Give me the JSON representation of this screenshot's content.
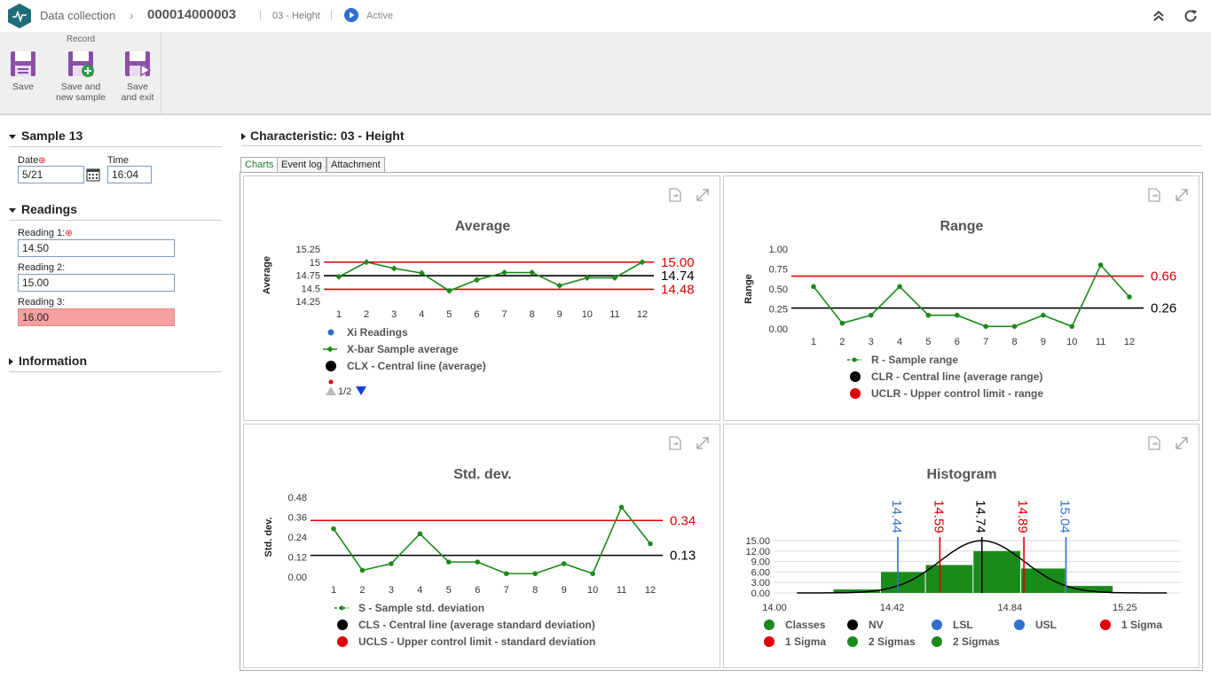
{
  "header": {
    "app": "Data collection",
    "record_id": "000014000003",
    "characteristic": "03 - Height",
    "status": "Active",
    "separator": "|"
  },
  "ribbon": {
    "group_title": "Record",
    "save": "Save",
    "save_new_line1": "Save and",
    "save_new_line2": "new sample",
    "save_exit_line1": "Save",
    "save_exit_line2": "and exit"
  },
  "sample": {
    "title": "Sample 13",
    "date_label": "Date",
    "date_value": "5/21",
    "time_label": "Time",
    "time_value": "16:04"
  },
  "readings": {
    "title": "Readings",
    "items": [
      {
        "label": "Reading 1:",
        "value": "14.50",
        "required": true
      },
      {
        "label": "Reading 2:",
        "value": "15.00",
        "required": false
      },
      {
        "label": "Reading 3:",
        "value": "16.00",
        "required": false
      }
    ]
  },
  "information": {
    "title": "Information"
  },
  "characteristic_panel": {
    "title": "Characteristic: 03 - Height",
    "tabs": [
      "Charts",
      "Event log",
      "Attachment"
    ]
  },
  "colors": {
    "green": "#1a8a1a",
    "red": "#e00000",
    "blue": "#2f6fcf",
    "black": "#000000"
  },
  "chart_data": [
    {
      "type": "line",
      "title": "Average",
      "ylabel": "Average",
      "x": [
        1,
        2,
        3,
        4,
        5,
        6,
        7,
        8,
        9,
        10,
        11,
        12
      ],
      "ylim": [
        14.25,
        15.25
      ],
      "yticks": [
        "15.25",
        "15",
        "14.75",
        "14.5",
        "14.25"
      ],
      "series": [
        {
          "name": "X-bar Sample average",
          "values": [
            14.72,
            15.0,
            14.88,
            14.79,
            14.45,
            14.66,
            14.8,
            14.8,
            14.55,
            14.7,
            14.7,
            15.0
          ]
        }
      ],
      "limits": [
        {
          "label": "15.00",
          "value": 15.0,
          "color": "#e00000"
        },
        {
          "label": "14.74",
          "value": 14.74,
          "color": "#000000"
        },
        {
          "label": "14.48",
          "value": 14.48,
          "color": "#e00000"
        }
      ],
      "legend": [
        "Xi Readings",
        "X-bar Sample average",
        "CLX - Central line (average)"
      ],
      "pager": "1/2"
    },
    {
      "type": "line",
      "title": "Range",
      "ylabel": "Range",
      "x": [
        1,
        2,
        3,
        4,
        5,
        6,
        7,
        8,
        9,
        10,
        11,
        12
      ],
      "ylim": [
        0,
        1
      ],
      "yticks": [
        "1.00",
        "0.75",
        "0.50",
        "0.25",
        "0.00"
      ],
      "series": [
        {
          "name": "R - Sample range",
          "values": [
            0.53,
            0.07,
            0.17,
            0.53,
            0.17,
            0.17,
            0.03,
            0.03,
            0.17,
            0.03,
            0.8,
            0.4
          ]
        }
      ],
      "limits": [
        {
          "label": "0.66",
          "value": 0.66,
          "color": "#e00000"
        },
        {
          "label": "0.26",
          "value": 0.26,
          "color": "#000000"
        }
      ],
      "legend": [
        "R - Sample range",
        "CLR - Central line (average range)",
        "UCLR - Upper control limit - range"
      ]
    },
    {
      "type": "line",
      "title": "Std. dev.",
      "ylabel": "Std. dev.",
      "x": [
        1,
        2,
        3,
        4,
        5,
        6,
        7,
        8,
        9,
        10,
        11,
        12
      ],
      "ylim": [
        0,
        0.48
      ],
      "yticks": [
        "0.48",
        "0.36",
        "0.24",
        "0.12",
        "0.00"
      ],
      "series": [
        {
          "name": "S - Sample std. deviation",
          "values": [
            0.29,
            0.04,
            0.08,
            0.26,
            0.09,
            0.09,
            0.02,
            0.02,
            0.08,
            0.02,
            0.42,
            0.2
          ]
        }
      ],
      "limits": [
        {
          "label": "0.34",
          "value": 0.34,
          "color": "#e00000"
        },
        {
          "label": "0.13",
          "value": 0.13,
          "color": "#000000"
        }
      ],
      "legend": [
        "S - Sample std. deviation",
        "CLS - Central line (average standard deviation)",
        "UCLS - Upper control limit - standard deviation"
      ]
    },
    {
      "type": "bar",
      "title": "Histogram",
      "xlim": [
        14.0,
        15.45
      ],
      "xticks": [
        "14.00",
        "14.42",
        "14.84",
        "15.25"
      ],
      "ylim": [
        0,
        15
      ],
      "yticks": [
        "15.00",
        "12.00",
        "9.00",
        "6.00",
        "3.00",
        "0.00"
      ],
      "bins": [
        {
          "x0": 14.21,
          "x1": 14.38,
          "value": 1.0
        },
        {
          "x0": 14.38,
          "x1": 14.54,
          "value": 6.0
        },
        {
          "x0": 14.54,
          "x1": 14.71,
          "value": 8.0
        },
        {
          "x0": 14.71,
          "x1": 14.88,
          "value": 12.0
        },
        {
          "x0": 14.88,
          "x1": 15.04,
          "value": 7.0
        },
        {
          "x0": 15.04,
          "x1": 15.21,
          "value": 2.0
        }
      ],
      "curve": {
        "mean": 14.74,
        "sigma": 0.15,
        "peak": 15
      },
      "markers": [
        {
          "label": "14.44",
          "value": 14.44,
          "color": "#2f6fcf"
        },
        {
          "label": "14.59",
          "value": 14.59,
          "color": "#e00000"
        },
        {
          "label": "14.74",
          "value": 14.74,
          "color": "#000000"
        },
        {
          "label": "14.89",
          "value": 14.89,
          "color": "#e00000"
        },
        {
          "label": "15.04",
          "value": 15.04,
          "color": "#2f6fcf"
        }
      ],
      "legend": [
        {
          "label": "Classes",
          "color": "#1a8a1a"
        },
        {
          "label": "NV",
          "color": "#000000"
        },
        {
          "label": "LSL",
          "color": "#2f6fcf"
        },
        {
          "label": "USL",
          "color": "#2f6fcf"
        },
        {
          "label": "1 Sigma",
          "color": "#e00000"
        },
        {
          "label": "1 Sigma",
          "color": "#e00000"
        },
        {
          "label": "2 Sigmas",
          "color": "#1a8a1a"
        },
        {
          "label": "2 Sigmas",
          "color": "#1a8a1a"
        }
      ]
    }
  ]
}
